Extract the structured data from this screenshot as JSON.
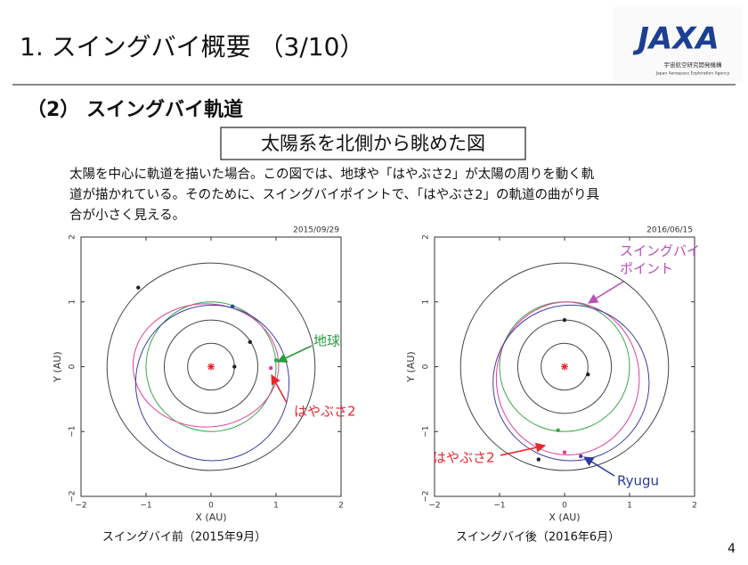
{
  "slide": {
    "title": "1. スイングバイ概要 （3/10）",
    "section": "（2） スイングバイ軌道",
    "box": "太陽系を北側から眺めた図",
    "paragraph": [
      "太陽を中心に軌道を描いた場合。この図では、地球や「はやぶさ2」が太陽の周りを動く軌",
      "道が描かれている。そのために、スイングバイポイントで、「はやぶさ2」の軌道の曲がり具",
      "合が小さく見える。"
    ],
    "logo": "JAXA",
    "logo_jp": "宇宙航空研究開発機構",
    "logo_en": "Japan Aerospace Exploration Agency",
    "page": "4"
  },
  "chart_data": [
    {
      "type": "orbit",
      "date": "2015/09/29",
      "xlabel": "X (AU)",
      "ylabel": "Y (AU)",
      "caption": "スイングバイ前（2015年9月）",
      "xlim": [
        -2,
        2
      ],
      "ylim": [
        -2,
        2
      ],
      "xticks": [
        {
          "value": -2,
          "label": "−2"
        },
        {
          "value": -1,
          "label": "−1"
        },
        0,
        1,
        2
      ],
      "yticks": [
        {
          "value": -2,
          "label": "−2"
        },
        {
          "value": -1,
          "label": "−1"
        },
        0,
        1,
        2
      ],
      "sun": {
        "x": 0,
        "y": 0,
        "color": "#e8262c"
      },
      "orbits": [
        {
          "color": "#444444",
          "cx": 0,
          "cy": 0,
          "rx": 0.36,
          "ry": 0.36
        },
        {
          "color": "#444444",
          "cx": 0,
          "cy": 0,
          "rx": 0.72,
          "ry": 0.72
        },
        {
          "color": "#444444",
          "cx": 0,
          "cy": 0,
          "rx": 1.6,
          "ry": 1.6
        },
        {
          "color": "#3aa64a",
          "cx": 0,
          "cy": 0,
          "rx": 1.0,
          "ry": 1.0
        },
        {
          "color": "#e0409a",
          "cx": -0.08,
          "cy": 0.02,
          "rx": 1.12,
          "ry": 0.95
        },
        {
          "color": "#3b3fa0",
          "cx": 0.02,
          "cy": -0.25,
          "rx": 1.18,
          "ry": 1.2
        }
      ],
      "points": [
        {
          "color": "#222222",
          "x": -1.12,
          "y": 1.22
        },
        {
          "color": "#222222",
          "x": 0.6,
          "y": 0.38
        },
        {
          "color": "#222222",
          "x": 0.36,
          "y": 0.0
        },
        {
          "color": "#3b3fa0",
          "x": 0.33,
          "y": 0.93
        },
        {
          "color": "#3aa64a",
          "x": 1.0,
          "y": 0.1
        },
        {
          "color": "#e0409a",
          "x": 0.92,
          "y": -0.02
        }
      ],
      "annotations": [
        {
          "lines": [
            "地球"
          ],
          "color": "#2a9a3a"
        },
        {
          "lines": [
            "はやぶさ2"
          ],
          "color": "#e8262c"
        }
      ]
    },
    {
      "type": "orbit",
      "date": "2016/06/15",
      "xlabel": "X (AU)",
      "ylabel": "Y (AU)",
      "caption": "スイングバイ後（2016年6月）",
      "xlim": [
        -2,
        2
      ],
      "ylim": [
        -2,
        2
      ],
      "xticks": [
        {
          "value": -2,
          "label": "−2"
        },
        {
          "value": -1,
          "label": "−1"
        },
        0,
        1,
        2
      ],
      "yticks": [
        {
          "value": -2,
          "label": "−2"
        },
        {
          "value": -1,
          "label": "−1"
        },
        0,
        1,
        2
      ],
      "sun": {
        "x": 0,
        "y": 0,
        "color": "#e8262c"
      },
      "orbits": [
        {
          "color": "#444444",
          "cx": 0,
          "cy": 0,
          "rx": 0.36,
          "ry": 0.36
        },
        {
          "color": "#444444",
          "cx": 0,
          "cy": 0,
          "rx": 0.72,
          "ry": 0.72
        },
        {
          "color": "#444444",
          "cx": 0,
          "cy": 0,
          "rx": 1.6,
          "ry": 1.6
        },
        {
          "color": "#3aa64a",
          "cx": 0,
          "cy": 0,
          "rx": 1.0,
          "ry": 1.0
        },
        {
          "color": "#e0409a",
          "cx": 0.05,
          "cy": -0.18,
          "rx": 1.1,
          "ry": 1.18
        },
        {
          "color": "#3b3fa0",
          "cx": 0.1,
          "cy": -0.25,
          "rx": 1.2,
          "ry": 1.2
        }
      ],
      "points": [
        {
          "color": "#222222",
          "x": 0.0,
          "y": 0.72
        },
        {
          "color": "#222222",
          "x": 0.36,
          "y": -0.12
        },
        {
          "color": "#222222",
          "x": -0.4,
          "y": -1.43
        },
        {
          "color": "#3aa64a",
          "x": -0.1,
          "y": -0.98
        },
        {
          "color": "#3b3fa0",
          "x": 0.25,
          "y": -1.38
        },
        {
          "color": "#e0409a",
          "x": 0.0,
          "y": -1.32
        }
      ],
      "annotations": [
        {
          "lines": [
            "スイングバイ",
            "ポイント"
          ],
          "color": "#b64fb8"
        },
        {
          "lines": [
            "はやぶさ2"
          ],
          "color": "#e8262c"
        },
        {
          "lines": [
            "Ryugu"
          ],
          "color": "#2c3b9a"
        }
      ]
    }
  ]
}
